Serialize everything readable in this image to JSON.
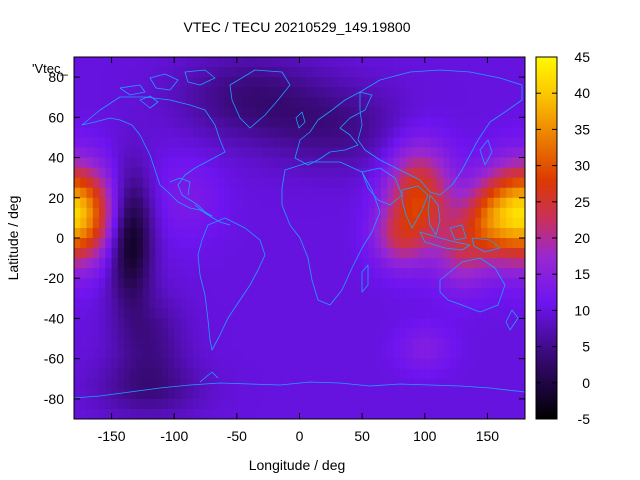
{
  "chart_data": {
    "type": "heatmap",
    "title": "VTEC / TECU 20210529_149.19800",
    "xlabel": "Longitude / deg",
    "ylabel": "Latitude / deg",
    "key_label": "'Vtec_",
    "xlim": [
      -180,
      180
    ],
    "ylim": [
      -90,
      90
    ],
    "x_ticks": [
      -150,
      -100,
      -50,
      0,
      50,
      100,
      150
    ],
    "y_ticks": [
      -80,
      -60,
      -40,
      -20,
      0,
      20,
      40,
      60,
      80
    ],
    "colorbar": {
      "range": [
        -5,
        45
      ],
      "ticks": [
        -5,
        0,
        5,
        10,
        15,
        20,
        25,
        30,
        35,
        40,
        45
      ]
    },
    "grid": false,
    "map_overlay": "coastlines",
    "map_overlay_color": "#1ea0ff",
    "colormap": "black-purple-red-orange-yellow",
    "tec_field": {
      "background": 10,
      "sources": [
        {
          "lon": 178,
          "lat": 12,
          "amp": 32,
          "sx": 22,
          "sy": 16
        },
        {
          "lon": -182,
          "lat": 12,
          "amp": 32,
          "sx": 22,
          "sy": 16
        },
        {
          "lon": 95,
          "lat": 20,
          "amp": 18,
          "sx": 18,
          "sy": 18
        },
        {
          "lon": 78,
          "lat": 0,
          "amp": 8,
          "sx": 14,
          "sy": 10
        },
        {
          "lon": 130,
          "lat": -5,
          "amp": 10,
          "sx": 14,
          "sy": 14
        },
        {
          "lon": 150,
          "lat": 8,
          "amp": 8,
          "sx": 12,
          "sy": 12
        },
        {
          "lon": -90,
          "lat": 20,
          "amp": 3,
          "sx": 20,
          "sy": 15
        },
        {
          "lon": 100,
          "lat": -55,
          "amp": 4,
          "sx": 15,
          "sy": 8
        },
        {
          "lon": 30,
          "lat": 55,
          "amp": -5,
          "sx": 40,
          "sy": 15
        },
        {
          "lon": -40,
          "lat": 70,
          "amp": -6,
          "sx": 40,
          "sy": 15
        },
        {
          "lon": -135,
          "lat": 0,
          "amp": -14,
          "sx": 12,
          "sy": 22
        },
        {
          "lon": -120,
          "lat": -50,
          "amp": -5,
          "sx": 20,
          "sy": 15
        },
        {
          "lon": -120,
          "lat": -75,
          "amp": -5,
          "sx": 30,
          "sy": 10
        }
      ]
    }
  }
}
